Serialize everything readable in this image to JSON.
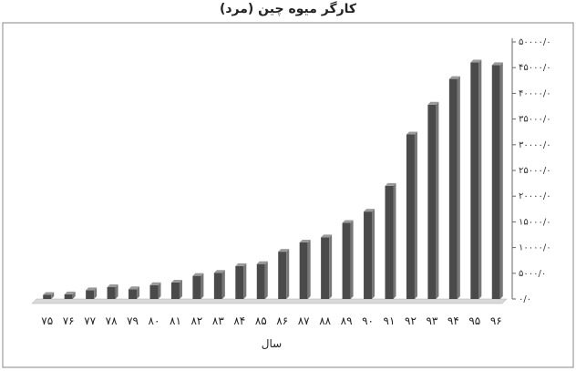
{
  "chart_data": {
    "type": "bar",
    "title": "کارگر میوه چین (مرد)",
    "xlabel": "سال",
    "ylabel": "",
    "categories": [
      "۷۵",
      "۷۶",
      "۷۷",
      "۷۸",
      "۷۹",
      "۸۰",
      "۸۱",
      "۸۲",
      "۸۳",
      "۸۴",
      "۸۵",
      "۸۶",
      "۸۷",
      "۸۸",
      "۸۹",
      "۹۰",
      "۹۱",
      "۹۲",
      "۹۳",
      "۹۴",
      "۹۵",
      "۹۶"
    ],
    "values": [
      800,
      900,
      1700,
      2300,
      1900,
      2700,
      3200,
      4500,
      5100,
      6400,
      6800,
      9200,
      11000,
      12000,
      14800,
      17000,
      22000,
      32000,
      37800,
      42800,
      46000,
      45500
    ],
    "ylim": [
      0,
      50000
    ],
    "yticks": [
      0,
      5000,
      10000,
      15000,
      20000,
      25000,
      30000,
      35000,
      40000,
      45000,
      50000
    ],
    "ytick_labels": [
      "۰/۰",
      "۵۰۰۰/۰",
      "۱۰۰۰۰/۰",
      "۱۵۰۰۰/۰",
      "۲۰۰۰۰/۰",
      "۲۵۰۰۰/۰",
      "۳۰۰۰۰/۰",
      "۳۵۰۰۰/۰",
      "۴۰۰۰۰/۰",
      "۴۵۰۰۰/۰",
      "۵۰۰۰۰/۰"
    ],
    "y_axis_side": "right",
    "grid": false,
    "legend": "none",
    "bar_color": "#4a4a4a",
    "bar_side_color": "#777777",
    "bar_top_color": "#9a9a9a",
    "floor_color": "#d9d9d9"
  }
}
